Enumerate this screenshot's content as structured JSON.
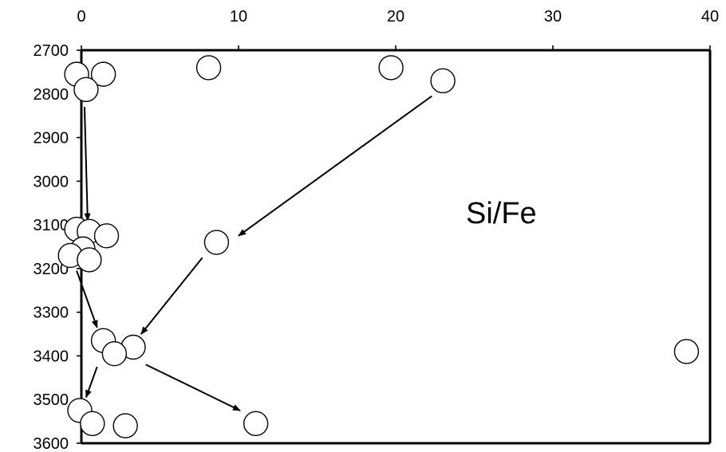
{
  "chart_data": {
    "type": "scatter",
    "title": "",
    "xlabel": "",
    "ylabel": "",
    "xlim": [
      0,
      40
    ],
    "ylim": [
      2700,
      3600
    ],
    "y_inverted": true,
    "x_axis_position": "top",
    "x_ticks": [
      0,
      10,
      20,
      30,
      40
    ],
    "y_ticks": [
      2700,
      2800,
      2900,
      3000,
      3100,
      3200,
      3300,
      3400,
      3500,
      3600
    ],
    "marker": "open-circle",
    "annotation": "Si/Fe",
    "points": [
      {
        "x": -0.3,
        "y": 2755
      },
      {
        "x": 1.4,
        "y": 2755
      },
      {
        "x": 0.3,
        "y": 2790
      },
      {
        "x": 8.1,
        "y": 2740
      },
      {
        "x": 19.7,
        "y": 2740
      },
      {
        "x": 23.0,
        "y": 2770
      },
      {
        "x": -0.3,
        "y": 3110
      },
      {
        "x": 0.5,
        "y": 3115
      },
      {
        "x": 1.6,
        "y": 3125
      },
      {
        "x": 8.6,
        "y": 3140
      },
      {
        "x": 0.1,
        "y": 3155
      },
      {
        "x": -0.7,
        "y": 3170
      },
      {
        "x": 0.5,
        "y": 3180
      },
      {
        "x": 1.4,
        "y": 3365
      },
      {
        "x": 3.3,
        "y": 3380
      },
      {
        "x": 2.1,
        "y": 3395
      },
      {
        "x": 38.5,
        "y": 3390
      },
      {
        "x": -0.1,
        "y": 3525
      },
      {
        "x": 0.7,
        "y": 3555
      },
      {
        "x": 2.8,
        "y": 3560
      },
      {
        "x": 11.1,
        "y": 3555
      }
    ],
    "arrows": [
      {
        "from": [
          0.2,
          2830
        ],
        "to": [
          0.4,
          3090
        ]
      },
      {
        "from": [
          22.3,
          2805
        ],
        "to": [
          10.0,
          3125
        ]
      },
      {
        "from": [
          7.7,
          3175
        ],
        "to": [
          3.8,
          3350
        ]
      },
      {
        "from": [
          -0.3,
          3205
        ],
        "to": [
          1.0,
          3335
        ]
      },
      {
        "from": [
          1.0,
          3425
        ],
        "to": [
          0.3,
          3495
        ]
      },
      {
        "from": [
          4.1,
          3420
        ],
        "to": [
          10.1,
          3525
        ]
      }
    ]
  }
}
